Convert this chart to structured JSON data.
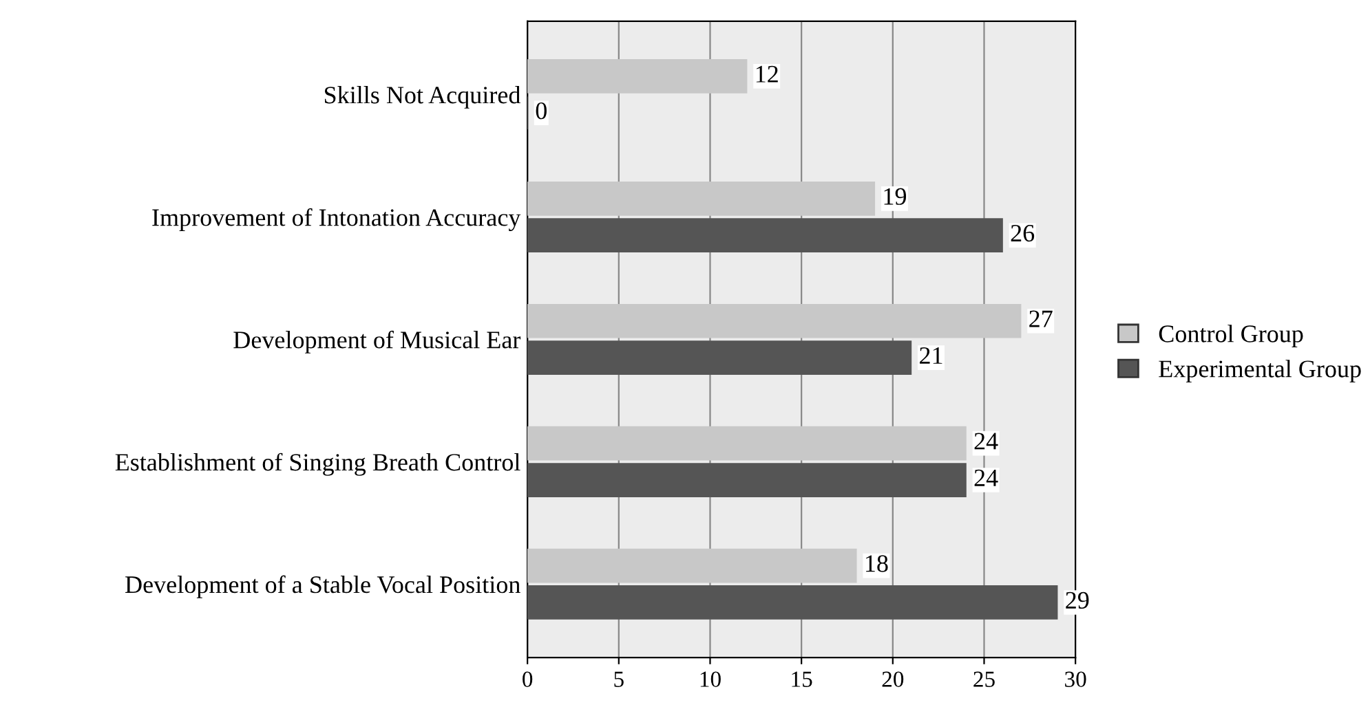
{
  "chart_data": {
    "type": "bar",
    "orientation": "horizontal",
    "categories": [
      "Skills Not Acquired",
      "Improvement of Intonation Accuracy",
      "Development of Musical Ear",
      "Establishment of Singing Breath Control",
      "Development of a Stable Vocal Position"
    ],
    "series": [
      {
        "name": "Control Group",
        "color": "#c8c8c8",
        "values": [
          12,
          19,
          27,
          24,
          18
        ]
      },
      {
        "name": "Experimental Group",
        "color": "#555555",
        "values": [
          0,
          26,
          21,
          24,
          29
        ]
      }
    ],
    "xlim": [
      0,
      30
    ],
    "xticks": [
      0,
      5,
      10,
      15,
      20,
      25,
      30
    ],
    "grid": "x",
    "legend": "right",
    "data_labels": true
  }
}
